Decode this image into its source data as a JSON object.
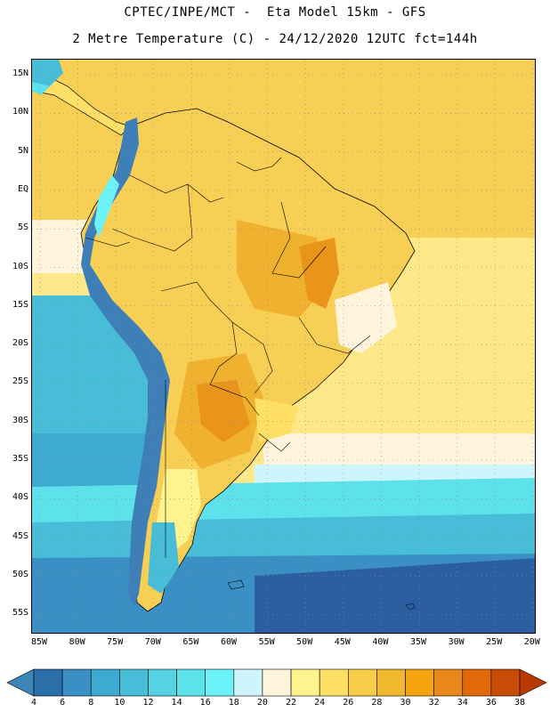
{
  "title": {
    "line1": "CPTEC/INPE/MCT -  Eta Model 15km - GFS",
    "line2": "2 Metre Temperature (C) - 24/12/2020 12UTC fct=144h"
  },
  "axes": {
    "lat_labels": [
      "15N",
      "10N",
      "5N",
      "EQ",
      "5S",
      "10S",
      "15S",
      "20S",
      "25S",
      "30S",
      "35S",
      "40S",
      "45S",
      "50S",
      "55S"
    ],
    "lon_labels": [
      "85W",
      "80W",
      "75W",
      "70W",
      "65W",
      "60W",
      "55W",
      "50W",
      "45W",
      "40W",
      "35W",
      "30W",
      "25W",
      "20W"
    ]
  },
  "legend": {
    "ticks": [
      "4",
      "6",
      "8",
      "10",
      "12",
      "14",
      "16",
      "18",
      "20",
      "22",
      "24",
      "26",
      "28",
      "30",
      "32",
      "34",
      "36",
      "38"
    ],
    "colors": [
      "#3e85ba",
      "#2b6fa8",
      "#3a8fc4",
      "#3ea9d1",
      "#48bdd8",
      "#56d2e2",
      "#5de2ec",
      "#6cf3f7",
      "#cdf5fb",
      "#fff5dc",
      "#fff38e",
      "#ffe066",
      "#f7cc48",
      "#f0b82e",
      "#f3a40e",
      "#e8871a",
      "#e06a0a",
      "#c84b06",
      "#b83a02"
    ]
  },
  "map": {
    "colors": {
      "ocean_cold": "#2b5ea0",
      "ocean_cool": "#3a8fc4",
      "ocean_mid": "#48bdd8",
      "ocean_light": "#5de2ec",
      "ocean_pale": "#cdf5fb",
      "cream": "#fff5dc",
      "yellow": "#ffe88a",
      "gold": "#f7cf55",
      "orange": "#f0b12e",
      "deep_orange": "#e8951a",
      "andes_cold": "#3e7fb8"
    }
  }
}
